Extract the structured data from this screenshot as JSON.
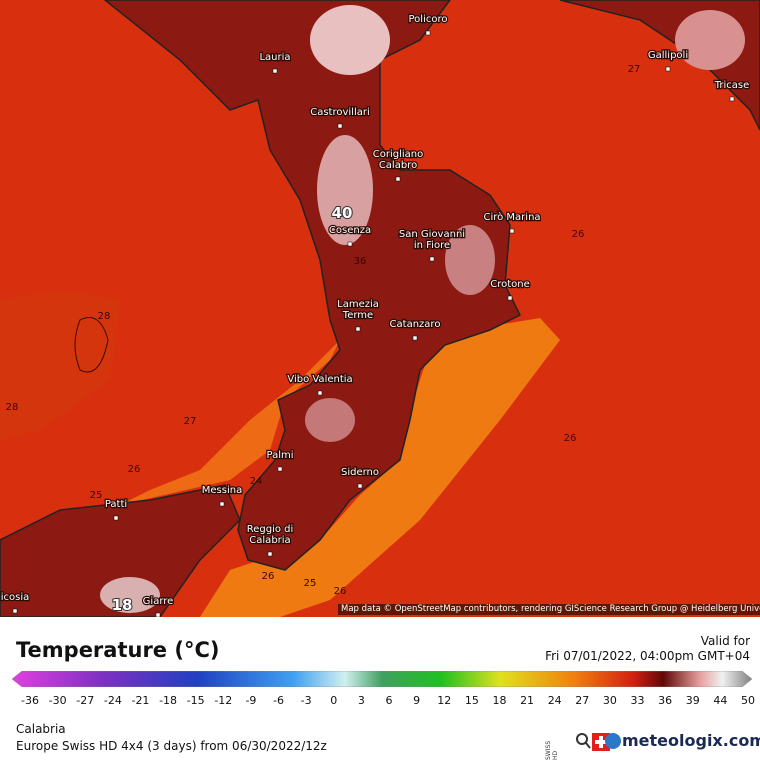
{
  "map": {
    "cities": [
      {
        "lines": [
          "Policoro"
        ]
      },
      {
        "lines": [
          "Lauria"
        ]
      },
      {
        "lines": [
          "Gallipoli"
        ]
      },
      {
        "lines": [
          "Tricase"
        ]
      },
      {
        "lines": [
          "Castrovillari"
        ]
      },
      {
        "lines": [
          "Corigliano",
          "Calabro"
        ]
      },
      {
        "lines": [
          "Cirò Marina"
        ]
      },
      {
        "lines": [
          "Cosenza"
        ]
      },
      {
        "lines": [
          "San Giovanni",
          "in Fiore"
        ]
      },
      {
        "lines": [
          "Crotone"
        ]
      },
      {
        "lines": [
          "Lamezia",
          "Terme"
        ]
      },
      {
        "lines": [
          "Catanzaro"
        ]
      },
      {
        "lines": [
          "Vibo Valentia"
        ]
      },
      {
        "lines": [
          "Palmi"
        ]
      },
      {
        "lines": [
          "Siderno"
        ]
      },
      {
        "lines": [
          "Messina"
        ]
      },
      {
        "lines": [
          "Patti"
        ]
      },
      {
        "lines": [
          "Reggio di",
          "Calabria"
        ]
      },
      {
        "lines": [
          "Giarre"
        ]
      },
      {
        "lines": [
          "icosia"
        ]
      }
    ],
    "contour_labels": [
      28,
      28,
      27,
      26,
      25,
      24,
      26,
      25,
      26,
      26,
      26,
      27,
      36,
      40,
      18
    ],
    "attribution": "Map data © OpenStreetMap contributors, rendering GIScience Research Group @ Heidelberg University"
  },
  "legend": {
    "title": "Temperature (°C)",
    "valid_label": "Valid for",
    "valid_time": "Fri 07/01/2022, 04:00pm GMT+04",
    "ticks": [
      -36,
      -30,
      -27,
      -24,
      -21,
      -18,
      -15,
      -12,
      -9,
      -6,
      -3,
      0,
      3,
      6,
      9,
      12,
      15,
      18,
      21,
      24,
      27,
      30,
      33,
      36,
      39,
      44,
      50
    ]
  },
  "footer": {
    "region": "Calabria",
    "model": "Europe Swiss HD 4x4 (3 days) from 06/30/2022/12z",
    "brand": "meteologix.com",
    "badge": "SWISS HD"
  }
}
